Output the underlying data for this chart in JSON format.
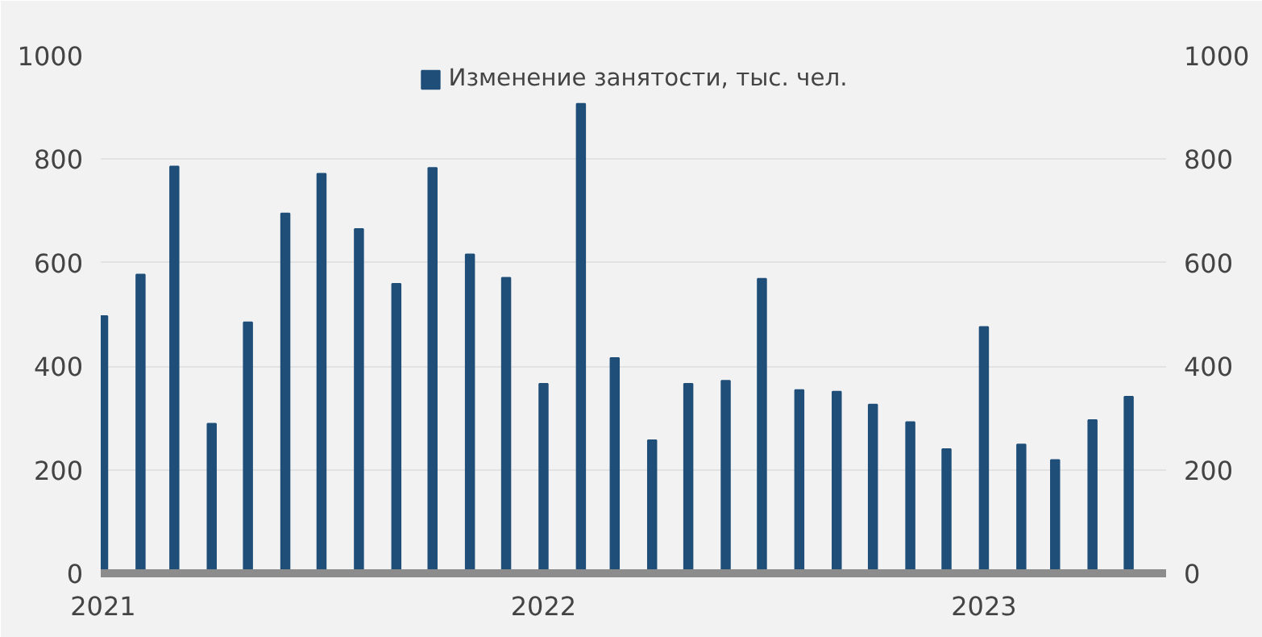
{
  "chart_data": {
    "type": "bar",
    "x": [
      "2021-01",
      "2021-02",
      "2021-03",
      "2021-04",
      "2021-05",
      "2021-06",
      "2021-07",
      "2021-08",
      "2021-09",
      "2021-10",
      "2021-11",
      "2021-12",
      "2022-01",
      "2022-02",
      "2022-03",
      "2022-04",
      "2022-05",
      "2022-06",
      "2022-07",
      "2022-08",
      "2022-09",
      "2022-10",
      "2022-11",
      "2022-12",
      "2023-01",
      "2023-02",
      "2023-03",
      "2023-04",
      "2023-05"
    ],
    "series": [
      {
        "name": "Изменение занятости, тыс. чел.",
        "color": "#1f4e79",
        "values": [
          497,
          577,
          786,
          289,
          485,
          695,
          772,
          665,
          559,
          783,
          616,
          571,
          366,
          907,
          416,
          257,
          366,
          372,
          569,
          354,
          351,
          326,
          292,
          240,
          476,
          249,
          219,
          296,
          341
        ]
      }
    ],
    "xlim": [
      "2021-01",
      "2023-06"
    ],
    "xticks": [
      {
        "value": "2021-01",
        "label": "2021"
      },
      {
        "value": "2022-01",
        "label": "2022"
      },
      {
        "value": "2023-01",
        "label": "2023"
      }
    ],
    "ylim": [
      0,
      1000
    ],
    "yticks": [
      0,
      200,
      400,
      600,
      800,
      1000
    ],
    "y2lim": [
      0,
      1000
    ],
    "y2ticks": [
      0,
      200,
      400,
      600,
      800,
      1000
    ],
    "grid": "y",
    "legend": "top"
  }
}
